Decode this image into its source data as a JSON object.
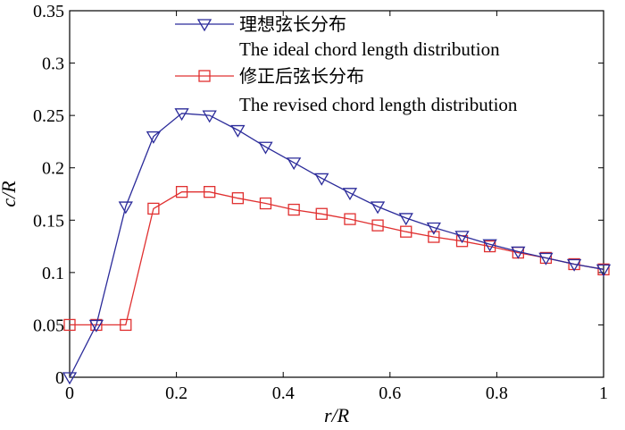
{
  "chart_data": {
    "type": "line",
    "xlabel": "r/R",
    "ylabel": "c/R",
    "xlim": [
      0,
      1
    ],
    "ylim": [
      0,
      0.35
    ],
    "xticks": [
      "0",
      "0.2",
      "0.4",
      "0.6",
      "0.8",
      "1"
    ],
    "yticks": [
      "0",
      "0.05",
      "0.1",
      "0.15",
      "0.2",
      "0.25",
      "0.3",
      "0.35"
    ],
    "xtick_values": [
      0,
      0.2,
      0.4,
      0.6,
      0.8,
      1
    ],
    "ytick_values": [
      0,
      0.05,
      0.1,
      0.15,
      0.2,
      0.25,
      0.3,
      0.35
    ],
    "grid": false,
    "legend_position": "top-right",
    "series": [
      {
        "name": "理想弦长分布",
        "name_en": "The ideal chord length distribution",
        "color": "#2b2b9a",
        "marker": "triangle-down",
        "x": [
          0,
          0.05,
          0.105,
          0.157,
          0.21,
          0.262,
          0.315,
          0.367,
          0.42,
          0.472,
          0.525,
          0.577,
          0.63,
          0.682,
          0.735,
          0.787,
          0.84,
          0.892,
          0.945,
          1.0
        ],
        "y": [
          0,
          0.05,
          0.163,
          0.23,
          0.252,
          0.25,
          0.236,
          0.22,
          0.205,
          0.19,
          0.176,
          0.163,
          0.152,
          0.143,
          0.135,
          0.127,
          0.12,
          0.114,
          0.108,
          0.103
        ]
      },
      {
        "name": "修正后弦长分布",
        "name_en": "The revised chord length distribution",
        "color": "#e03030",
        "marker": "square",
        "x": [
          0,
          0.05,
          0.105,
          0.157,
          0.21,
          0.262,
          0.315,
          0.367,
          0.42,
          0.472,
          0.525,
          0.577,
          0.63,
          0.682,
          0.735,
          0.787,
          0.84,
          0.892,
          0.945,
          1.0
        ],
        "y": [
          0.05,
          0.05,
          0.05,
          0.161,
          0.177,
          0.177,
          0.171,
          0.166,
          0.16,
          0.156,
          0.151,
          0.145,
          0.139,
          0.134,
          0.13,
          0.125,
          0.119,
          0.114,
          0.108,
          0.103
        ]
      }
    ]
  }
}
